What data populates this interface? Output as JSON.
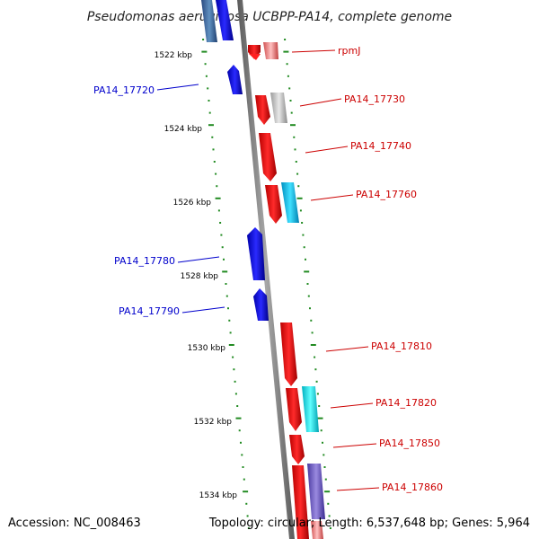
{
  "title": "Pseudomonas aeruginosa UCBPP-PA14, complete genome",
  "footer": {
    "accession": "Accession: NC_008463",
    "summary": "Topology: circular; Length: 6,537,648 bp; Genes: 5,964"
  },
  "colors": {
    "forward": "#ff0000",
    "reverse": "#0000ff",
    "tick": "#228b22",
    "backbone": "#808080",
    "label_forward": "#cc0000",
    "label_reverse": "#0000cc"
  },
  "kbp_labels": [
    "1522 kbp",
    "1524 kbp",
    "1526 kbp",
    "1528 kbp",
    "1530 kbp",
    "1532 kbp",
    "1534 kbp"
  ],
  "genes_forward": [
    "rpmJ",
    "PA14_17730",
    "PA14_17740",
    "PA14_17760",
    "PA14_17810",
    "PA14_17820",
    "PA14_17850",
    "PA14_17860"
  ],
  "genes_reverse": [
    "PA14_17720",
    "PA14_17780",
    "PA14_17790"
  ]
}
